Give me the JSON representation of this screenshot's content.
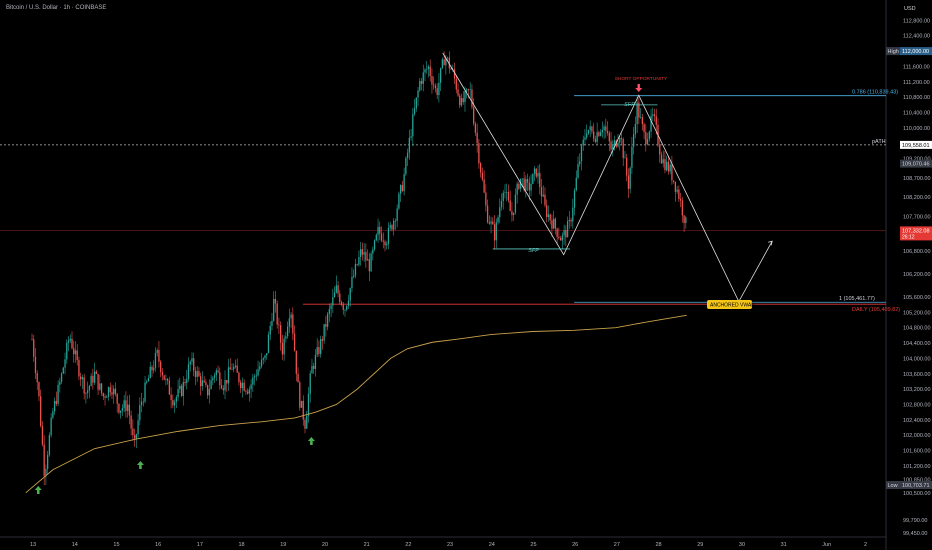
{
  "header": {
    "title": "Bitcoin / U.S. Dollar · 1h · COINBASE",
    "currency": "USD"
  },
  "colors": {
    "up": "#26a69a",
    "down": "#ef5350",
    "vwap": "#c9a24a",
    "level": "#4fb3e8",
    "red_level": "#e53935",
    "white": "#e0e0e0",
    "arrow_up": "#4caf50"
  },
  "chart_data": {
    "type": "candlestick",
    "ylim": [
      99350,
      113200
    ],
    "y_ticks": [
      "112,800.00",
      "112,400.00",
      "112,000.00",
      "111,600.00",
      "111,200.00",
      "110,800.00",
      "110,400.00",
      "110,000.00",
      "109,600.00",
      "109,200.00",
      "108,700.00",
      "108,200.00",
      "107,700.00",
      "107,200.00",
      "106,800.00",
      "106,200.00",
      "105,600.00",
      "105,200.00",
      "104,800.00",
      "104,400.00",
      "104,000.00",
      "103,600.00",
      "103,200.00",
      "102,800.00",
      "102,400.00",
      "102,000.00",
      "101,600.00",
      "101,200.00",
      "100,850.00",
      "100,500.00",
      "99,790.00",
      "99,450.00"
    ],
    "x_ticks": [
      "13",
      "14",
      "15",
      "16",
      "17",
      "18",
      "19",
      "20",
      "21",
      "22",
      "23",
      "24",
      "25",
      "26",
      "27",
      "28",
      "29",
      "30",
      "31",
      "Jun",
      "2"
    ],
    "levels": {
      "fib_0786": {
        "label": "0.786 (110,839.43)",
        "value": 110839.43
      },
      "fib_1": {
        "label": "1 (105,461.77)",
        "value": 105461.77
      },
      "daily": {
        "label": "DAILY (105,409.82)",
        "value": 105409.82
      },
      "path": {
        "label": "pATH",
        "value": 109558.01
      }
    },
    "price_tags": {
      "high": {
        "label": "High",
        "value": "112,000.00"
      },
      "path": {
        "value": "109,558.01"
      },
      "mid": {
        "value": "109,070.46"
      },
      "current": {
        "value": "107,332.08",
        "sub": "26:12"
      },
      "low": {
        "label": "Low",
        "value": "100,703.71"
      }
    },
    "annotations": {
      "short": "SHORT OPPORTUNITY",
      "sfp_top": "SFP",
      "sfp_bottom": "SFP",
      "vwap": "ANCHORED VWAP"
    },
    "price_path": [
      [
        13.0,
        104500
      ],
      [
        13.15,
        103200
      ],
      [
        13.3,
        101000
      ],
      [
        13.5,
        102600
      ],
      [
        13.7,
        103500
      ],
      [
        13.9,
        104600
      ],
      [
        14.1,
        103800
      ],
      [
        14.3,
        103100
      ],
      [
        14.5,
        103600
      ],
      [
        14.7,
        103000
      ],
      [
        14.9,
        103300
      ],
      [
        15.1,
        102700
      ],
      [
        15.3,
        102800
      ],
      [
        15.45,
        101650
      ],
      [
        15.6,
        102800
      ],
      [
        15.8,
        103500
      ],
      [
        16.0,
        104100
      ],
      [
        16.2,
        103400
      ],
      [
        16.4,
        102900
      ],
      [
        16.6,
        103200
      ],
      [
        16.8,
        103900
      ],
      [
        17.0,
        103500
      ],
      [
        17.2,
        103100
      ],
      [
        17.4,
        103700
      ],
      [
        17.6,
        103300
      ],
      [
        17.8,
        103800
      ],
      [
        18.0,
        103400
      ],
      [
        18.2,
        103200
      ],
      [
        18.4,
        103700
      ],
      [
        18.6,
        104000
      ],
      [
        18.8,
        105500
      ],
      [
        19.0,
        104200
      ],
      [
        19.2,
        105400
      ],
      [
        19.4,
        103000
      ],
      [
        19.55,
        102300
      ],
      [
        19.7,
        103700
      ],
      [
        19.9,
        104300
      ],
      [
        20.1,
        105100
      ],
      [
        20.3,
        105800
      ],
      [
        20.5,
        105300
      ],
      [
        20.7,
        106100
      ],
      [
        20.9,
        106800
      ],
      [
        21.1,
        106400
      ],
      [
        21.3,
        107300
      ],
      [
        21.5,
        107100
      ],
      [
        21.7,
        107700
      ],
      [
        21.9,
        108600
      ],
      [
        22.1,
        110000
      ],
      [
        22.3,
        111200
      ],
      [
        22.5,
        111600
      ],
      [
        22.7,
        110900
      ],
      [
        22.9,
        111900
      ],
      [
        23.1,
        111400
      ],
      [
        23.3,
        110600
      ],
      [
        23.5,
        111000
      ],
      [
        23.7,
        109400
      ],
      [
        23.9,
        107800
      ],
      [
        24.1,
        107200
      ],
      [
        24.3,
        108500
      ],
      [
        24.5,
        107700
      ],
      [
        24.7,
        108700
      ],
      [
        24.9,
        108400
      ],
      [
        25.1,
        108900
      ],
      [
        25.3,
        107900
      ],
      [
        25.5,
        107500
      ],
      [
        25.7,
        107100
      ],
      [
        25.9,
        107500
      ],
      [
        26.1,
        109000
      ],
      [
        26.3,
        110000
      ],
      [
        26.5,
        109800
      ],
      [
        26.7,
        110100
      ],
      [
        26.9,
        109400
      ],
      [
        27.1,
        109900
      ],
      [
        27.3,
        108500
      ],
      [
        27.5,
        110600
      ],
      [
        27.7,
        109700
      ],
      [
        27.9,
        110300
      ],
      [
        28.1,
        109200
      ],
      [
        28.3,
        108900
      ],
      [
        28.5,
        108300
      ],
      [
        28.7,
        107400
      ]
    ],
    "vwap": [
      [
        12.85,
        100500
      ],
      [
        13.5,
        101100
      ],
      [
        14.5,
        101650
      ],
      [
        15.5,
        101900
      ],
      [
        16.5,
        102100
      ],
      [
        17.5,
        102250
      ],
      [
        18.5,
        102350
      ],
      [
        19.3,
        102450
      ],
      [
        19.8,
        102600
      ],
      [
        20.3,
        102800
      ],
      [
        20.8,
        103200
      ],
      [
        21.2,
        103600
      ],
      [
        21.6,
        104000
      ],
      [
        22.0,
        104250
      ],
      [
        22.6,
        104420
      ],
      [
        23.2,
        104500
      ],
      [
        24.0,
        104620
      ],
      [
        25.0,
        104700
      ],
      [
        26.0,
        104730
      ],
      [
        27.0,
        104800
      ],
      [
        27.7,
        104940
      ],
      [
        28.3,
        105050
      ],
      [
        28.7,
        105120
      ]
    ],
    "zigzag": [
      [
        22.85,
        111950
      ],
      [
        25.75,
        106700
      ],
      [
        27.55,
        110850
      ],
      [
        29.95,
        105480
      ],
      [
        30.75,
        107050
      ]
    ],
    "buy_arrows": [
      13.15,
      15.6,
      19.7
    ]
  }
}
